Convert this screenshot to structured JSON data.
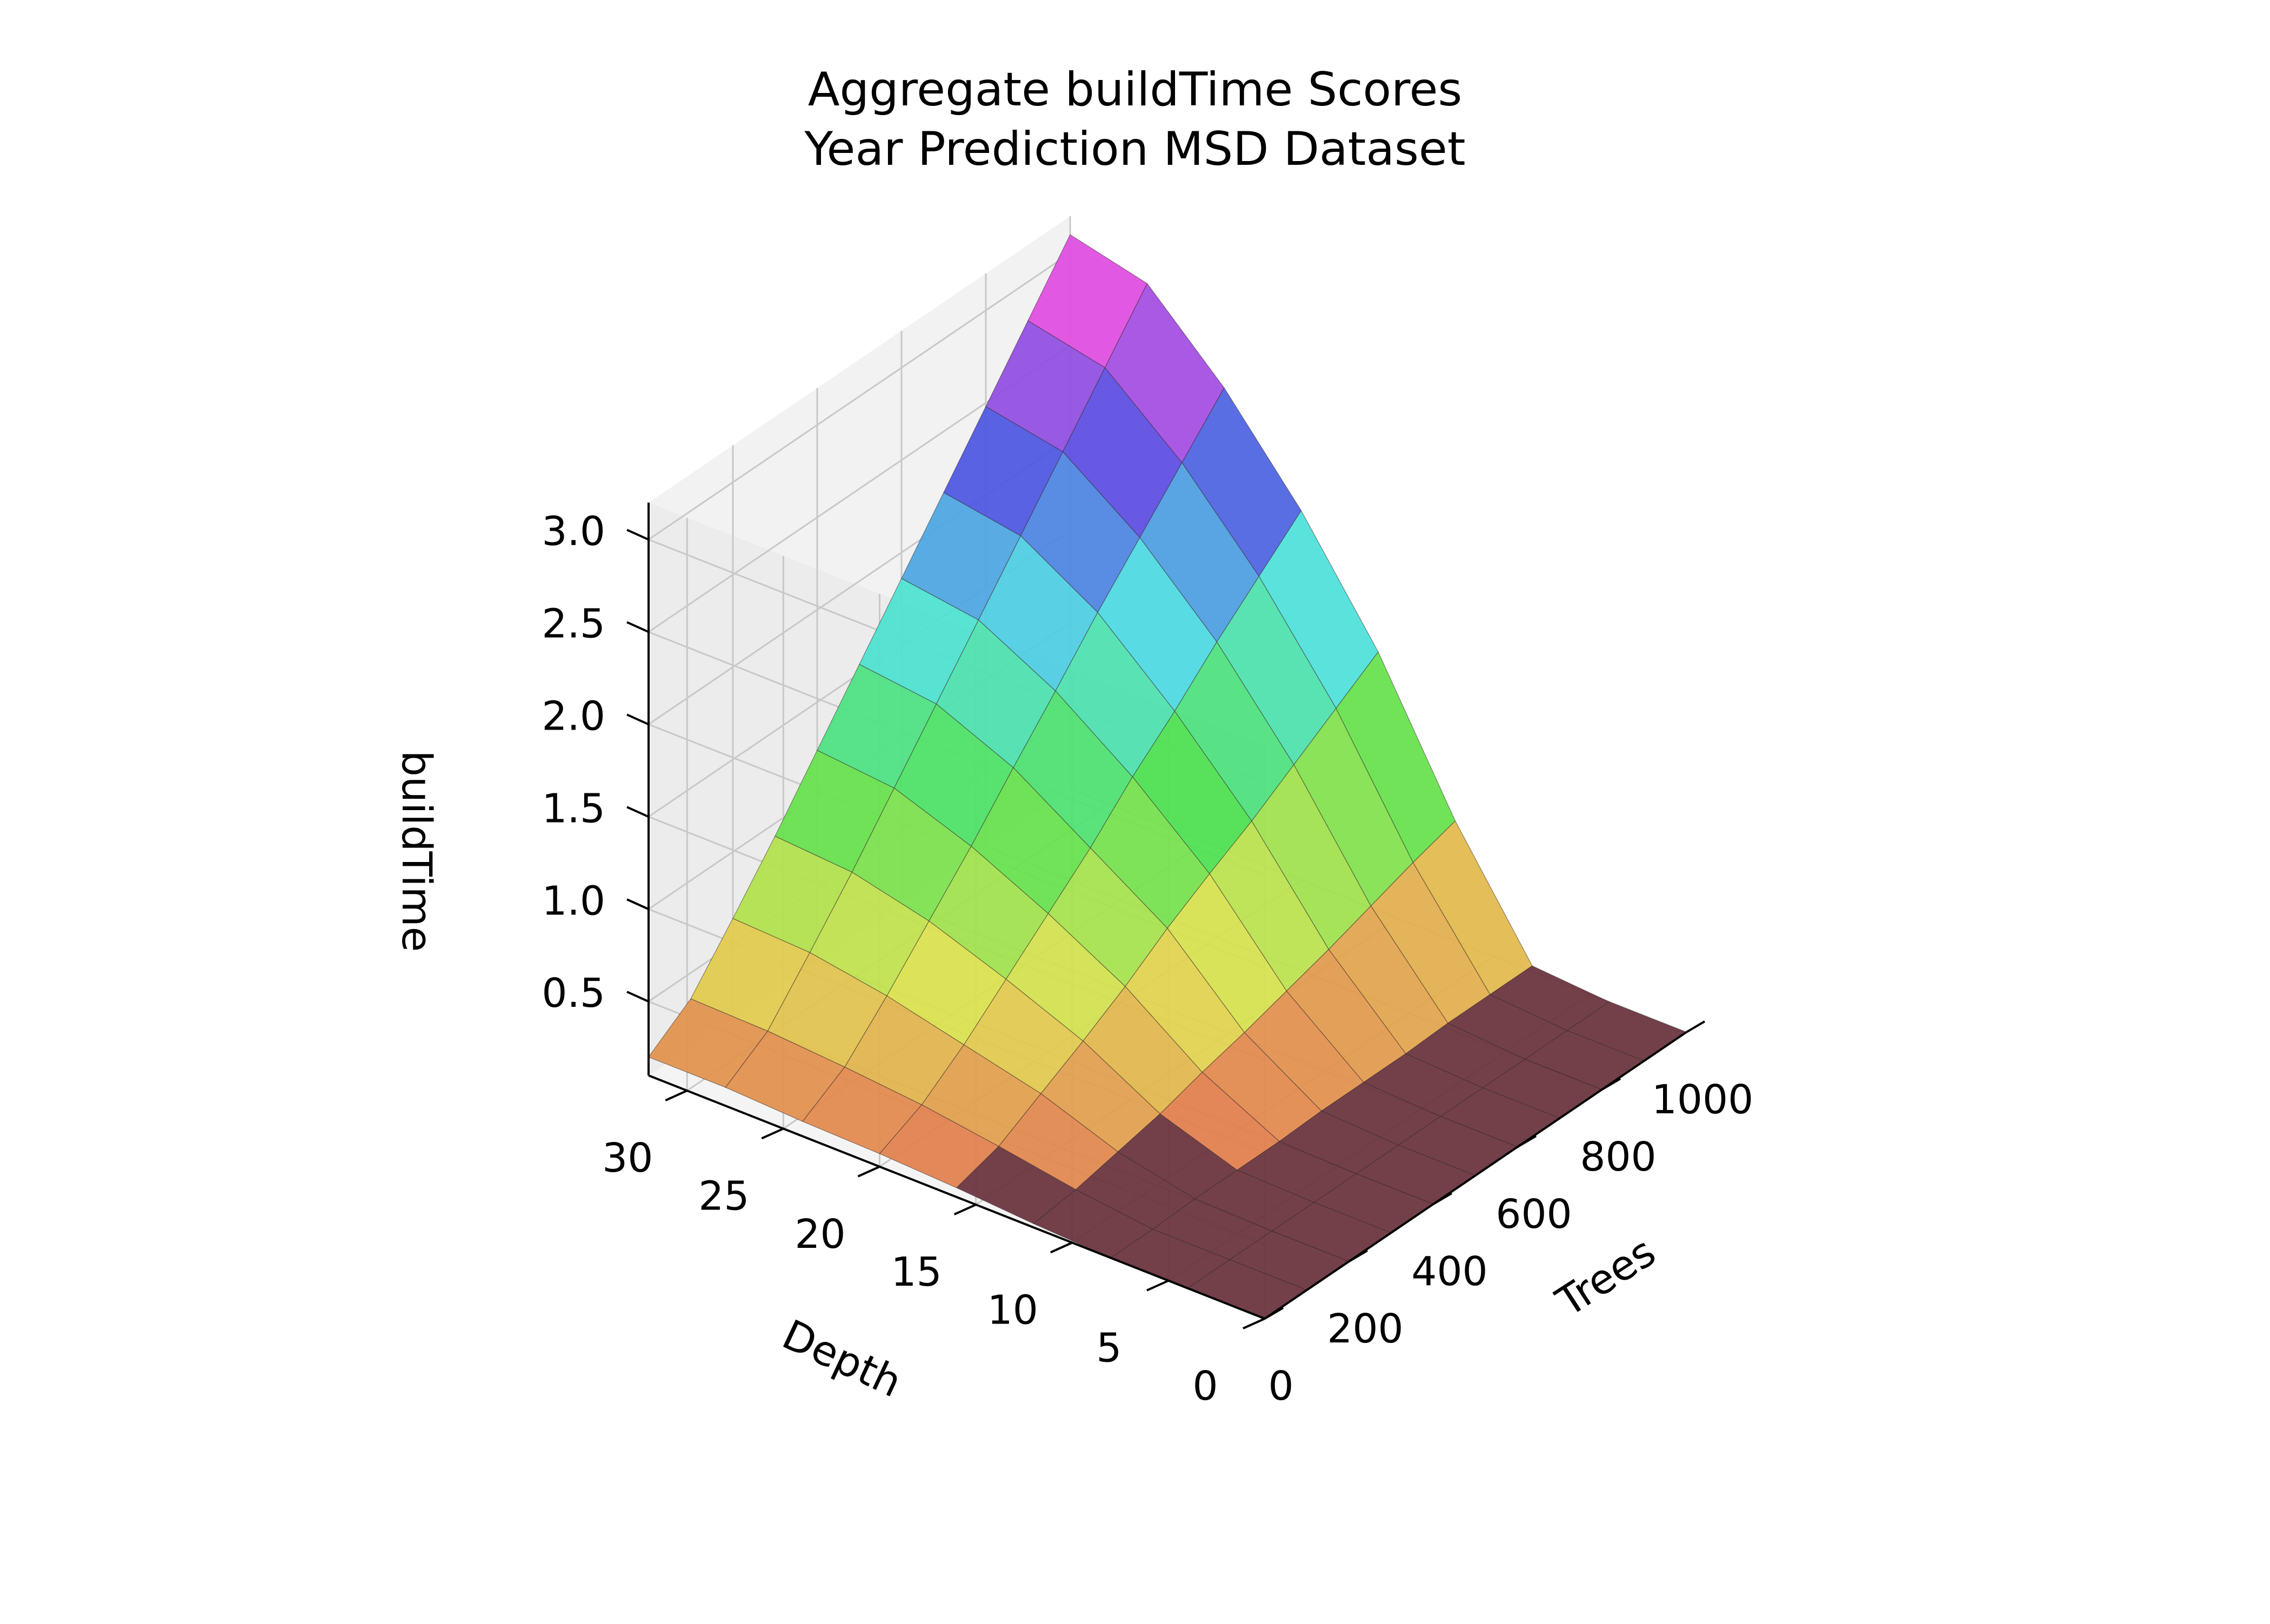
{
  "chart_data": {
    "type": "surface3d",
    "title": "Aggregate buildTime Scores",
    "subtitle": "Year Prediction MSD Dataset",
    "x_axis": {
      "label": "Trees",
      "range": [
        0,
        1000
      ],
      "ticks": [
        0,
        200,
        400,
        600,
        800,
        1000
      ],
      "tick_labels": [
        "0",
        "200",
        "400",
        "600",
        "800",
        "1000"
      ]
    },
    "y_axis": {
      "label": "Depth",
      "range": [
        0,
        32
      ],
      "ticks": [
        0,
        5,
        10,
        15,
        20,
        25,
        30
      ],
      "tick_labels": [
        "0",
        "5",
        "10",
        "15",
        "20",
        "25",
        "30"
      ]
    },
    "z_axis": {
      "label": "buildTime",
      "range": [
        0.1,
        3.2
      ],
      "ticks": [
        0.5,
        1.0,
        1.5,
        2.0,
        2.5,
        3.0
      ],
      "tick_labels": [
        "0.5",
        "1.0",
        "1.5",
        "2.0",
        "2.5",
        "3.0"
      ]
    },
    "grid": true,
    "colormap": "husl",
    "description_note": "",
    "surface": {
      "trees": [
        0,
        100,
        200,
        300,
        400,
        500,
        600,
        700,
        800,
        900,
        1000
      ],
      "depths": [
        0,
        4,
        8,
        12,
        16,
        20,
        24,
        28,
        32
      ],
      "buildTime": [
        [
          0.1,
          0.1,
          0.1,
          0.1,
          0.1,
          0.1,
          0.1,
          0.1,
          0.1,
          0.1,
          0.1
        ],
        [
          0.1,
          0.1,
          0.1,
          0.1,
          0.1,
          0.1,
          0.1,
          0.1,
          0.1,
          0.1,
          0.1
        ],
        [
          0.1,
          0.1,
          0.11,
          0.11,
          0.11,
          0.12,
          0.12,
          0.12,
          0.13,
          0.13,
          0.13
        ],
        [
          0.12,
          0.15,
          0.2,
          0.25,
          0.32,
          0.38,
          0.45,
          0.52,
          0.6,
          0.68,
          0.75
        ],
        [
          0.15,
          0.22,
          0.35,
          0.48,
          0.62,
          0.78,
          0.92,
          1.05,
          1.2,
          1.35,
          1.5
        ],
        [
          0.17,
          0.28,
          0.45,
          0.65,
          0.85,
          1.05,
          1.28,
          1.48,
          1.7,
          1.9,
          2.1
        ],
        [
          0.18,
          0.32,
          0.55,
          0.8,
          1.05,
          1.32,
          1.58,
          1.85,
          2.1,
          2.35,
          2.6
        ],
        [
          0.2,
          0.35,
          0.62,
          0.9,
          1.2,
          1.5,
          1.8,
          2.1,
          2.4,
          2.7,
          3.0
        ],
        [
          0.2,
          0.36,
          0.64,
          0.93,
          1.24,
          1.55,
          1.86,
          2.17,
          2.48,
          2.79,
          3.1
        ]
      ]
    }
  }
}
